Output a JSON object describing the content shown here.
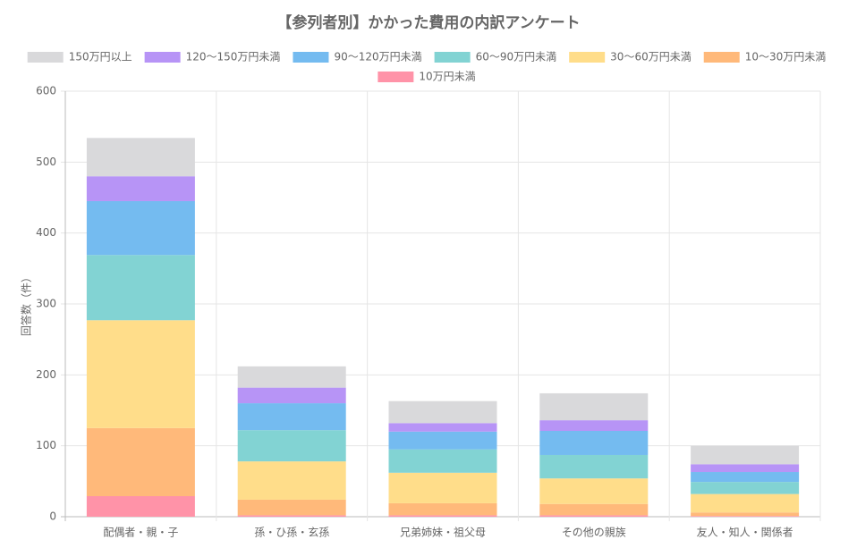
{
  "chart_data": {
    "type": "stacked_bar",
    "title": "【参列者別】かかった費用の内訳アンケート",
    "y_label": "回答数（件）",
    "categories": [
      "配偶者・親・子",
      "孫・ひ孫・玄孫",
      "兄弟姉妹・祖父母",
      "その他の親族",
      "友人・知人・関係者"
    ],
    "series": [
      {
        "name": "150万円以上",
        "color": "#d9d9db",
        "values": [
          54,
          30,
          31,
          38,
          26
        ]
      },
      {
        "name": "120〜150万円未満",
        "color": "#b794f6",
        "values": [
          35,
          22,
          12,
          15,
          11
        ]
      },
      {
        "name": "90〜120万円未満",
        "color": "#74bbf0",
        "values": [
          76,
          38,
          25,
          34,
          14
        ]
      },
      {
        "name": "60〜90万円未満",
        "color": "#82d3d3",
        "values": [
          92,
          44,
          33,
          33,
          17
        ]
      },
      {
        "name": "30〜60万円未満",
        "color": "#ffdd8a",
        "values": [
          152,
          54,
          43,
          36,
          26
        ]
      },
      {
        "name": "10〜30万円未満",
        "color": "#ffb97a",
        "values": [
          96,
          22,
          17,
          16,
          5
        ]
      },
      {
        "name": "10万円未満",
        "color": "#ff93a8",
        "values": [
          29,
          2,
          2,
          2,
          1
        ]
      }
    ],
    "ylim": [
      0,
      600
    ],
    "yticks": [
      0,
      100,
      200,
      300,
      400,
      500,
      600
    ],
    "grid": true
  }
}
